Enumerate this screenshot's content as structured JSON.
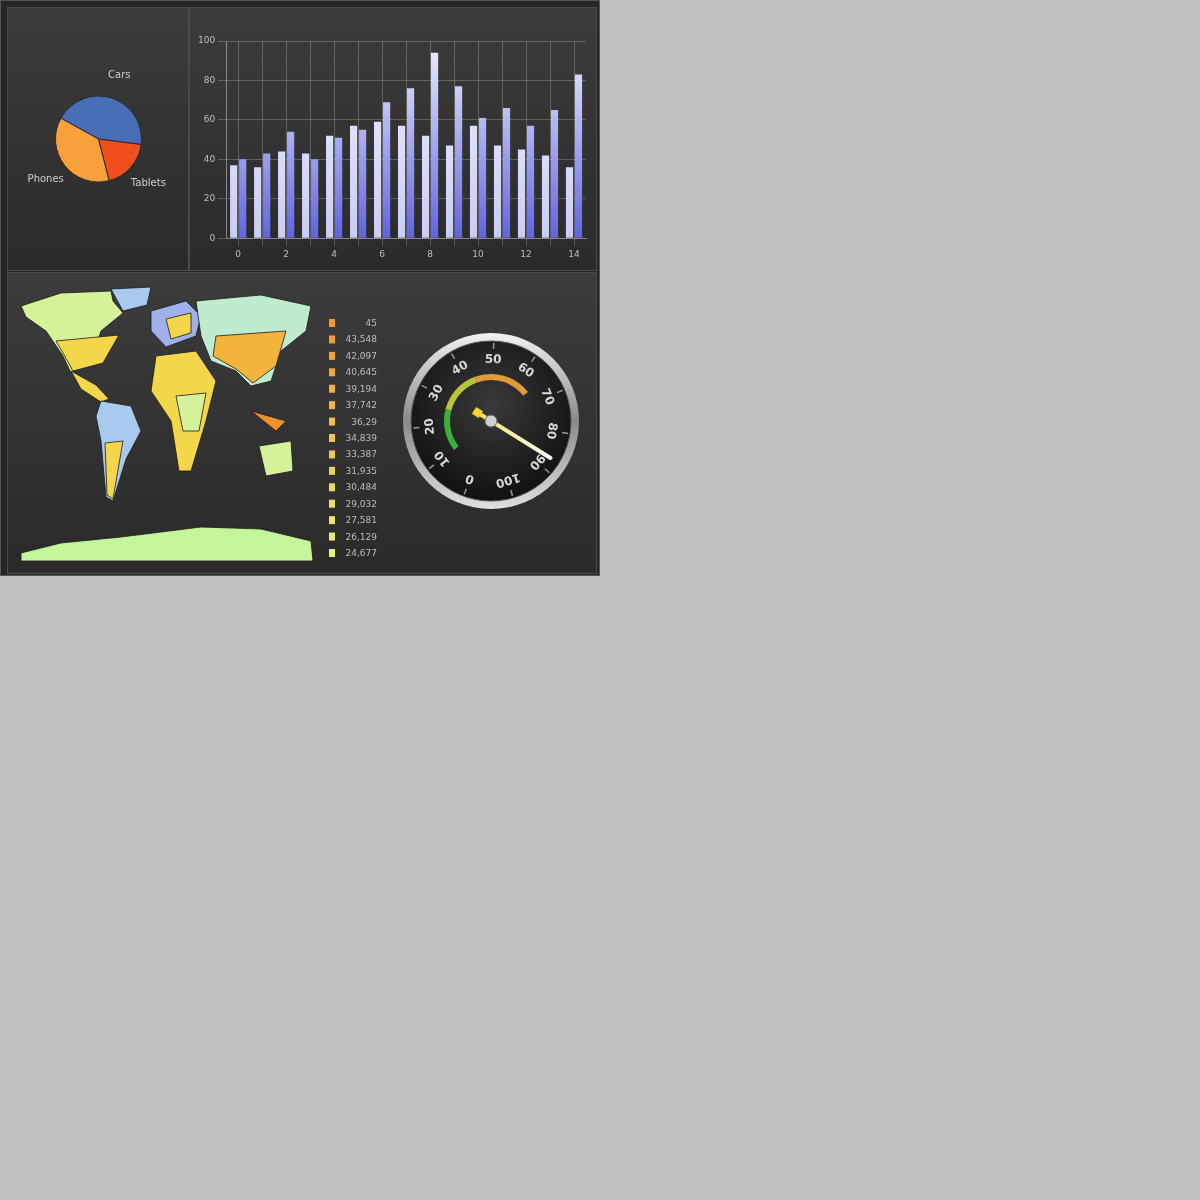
{
  "chart_data": [
    {
      "type": "pie",
      "categories": [
        "Cars",
        "Tablets",
        "Phones"
      ],
      "values": [
        44,
        19,
        37
      ],
      "colors": [
        "#4a6db8",
        "#f04e1c",
        "#f7a03c"
      ]
    },
    {
      "type": "bar",
      "categories": [
        0,
        null,
        2,
        null,
        4,
        null,
        6,
        null,
        8,
        null,
        10,
        null,
        12,
        null,
        14
      ],
      "series": [
        {
          "color": "#c9ccf6",
          "values": [
            37,
            36,
            44,
            43,
            52,
            57,
            59,
            57,
            52,
            47,
            57,
            47,
            45,
            42,
            36
          ]
        },
        {
          "color": "#5f64e6",
          "values": [
            40,
            43,
            54,
            40,
            51,
            55,
            69,
            76,
            94,
            77,
            61,
            66,
            57,
            65,
            83
          ]
        }
      ],
      "ylim": [
        0,
        100
      ],
      "yticks": [
        0,
        20,
        40,
        60,
        80,
        100
      ],
      "grid": true
    },
    {
      "type": "map",
      "colorbar_ticks": [
        45,
        {
          "value": 43.548,
          "label": "43,548"
        },
        {
          "value": 42.097,
          "label": "42,097"
        },
        {
          "value": 40.645,
          "label": "40,645"
        },
        {
          "value": 39.194,
          "label": "39,194"
        },
        {
          "value": 37.742,
          "label": "37,742"
        },
        {
          "value": 36.29,
          "label": "36,29"
        },
        {
          "value": 34.839,
          "label": "34,839"
        },
        {
          "value": 33.387,
          "label": "33,387"
        },
        {
          "value": 31.935,
          "label": "31,935"
        },
        {
          "value": 30.484,
          "label": "30,484"
        },
        {
          "value": 29.032,
          "label": "29,032"
        },
        {
          "value": 27.581,
          "label": "27,581"
        },
        {
          "value": 26.129,
          "label": "26,129"
        },
        {
          "value": 24.677,
          "label": "24,677"
        }
      ]
    },
    {
      "type": "gauge",
      "value": 87,
      "ylim": [
        0,
        100
      ],
      "yticks": [
        0,
        10,
        20,
        30,
        40,
        50,
        60,
        70,
        80,
        90,
        100
      ]
    }
  ]
}
